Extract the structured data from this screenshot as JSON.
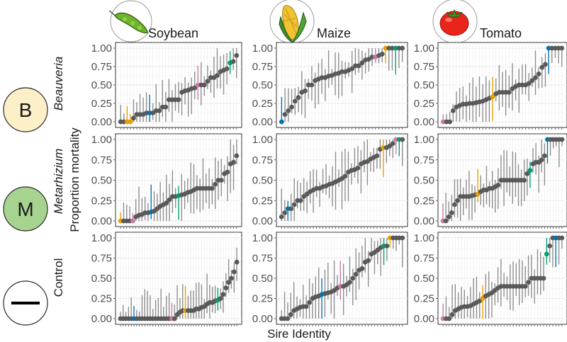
{
  "colors": {
    "panel_bg": "#ffffff",
    "grid": "#ebebeb",
    "point": "#595959",
    "errorbar": "#8c8c8c",
    "highlight": [
      "#e69f00",
      "#0072b2",
      "#cc79a7",
      "#009e73"
    ],
    "badge_B": "#fdf0c8",
    "badge_M": "#a6d38f",
    "badge_control": "#ffffff"
  },
  "icons": [
    "soybean-pod-icon",
    "corn-cob-icon",
    "tomato-icon"
  ],
  "badges": {
    "beauveria": "B",
    "metarhizium": "M"
  },
  "chart_data": {
    "type": "scatter",
    "columns": [
      "Soybean",
      "Maize",
      "Tomato"
    ],
    "rows": [
      "Beauveria",
      "Metarhizium",
      "Control"
    ],
    "xlabel": "Sire Identity",
    "ylabel": "Proportion mortality",
    "ylim": [
      0,
      1
    ],
    "yticks": [
      "0.00",
      "0.25",
      "0.50",
      "0.75",
      "1.00"
    ],
    "grid": true,
    "panels": [
      {
        "crop": "Soybean",
        "treatment": "Beauveria",
        "y": [
          0,
          0,
          0,
          0,
          0.05,
          0.1,
          0.1,
          0.1,
          0.12,
          0.12,
          0.12,
          0.15,
          0.15,
          0.2,
          0.2,
          0.3,
          0.3,
          0.3,
          0.3,
          0.4,
          0.42,
          0.43,
          0.45,
          0.46,
          0.5,
          0.5,
          0.5,
          0.55,
          0.6,
          0.6,
          0.63,
          0.68,
          0.7,
          0.72,
          0.8,
          0.82,
          0.9
        ],
        "highlights": {
          "2": 0,
          "3": 0,
          "9": 1,
          "24": 2,
          "34": 3
        }
      },
      {
        "crop": "Maize",
        "treatment": "Beauveria",
        "y": [
          0,
          0.1,
          0.15,
          0.2,
          0.28,
          0.33,
          0.4,
          0.42,
          0.5,
          0.5,
          0.56,
          0.58,
          0.6,
          0.6,
          0.62,
          0.63,
          0.65,
          0.66,
          0.68,
          0.68,
          0.7,
          0.72,
          0.76,
          0.76,
          0.8,
          0.84,
          0.85,
          0.88,
          0.88,
          0.9,
          0.92,
          1,
          1,
          1,
          1,
          1,
          1
        ],
        "highlights": {
          "0": 1,
          "28": 2,
          "31": 0,
          "34": 3
        }
      },
      {
        "crop": "Tomato",
        "treatment": "Beauveria",
        "y": [
          0,
          0,
          0,
          0.15,
          0.2,
          0.22,
          0.24,
          0.24,
          0.25,
          0.25,
          0.26,
          0.27,
          0.28,
          0.3,
          0.32,
          0.34,
          0.38,
          0.4,
          0.4,
          0.4,
          0.4,
          0.45,
          0.48,
          0.5,
          0.5,
          0.5,
          0.52,
          0.56,
          0.6,
          0.65,
          0.74,
          0.78,
          1,
          1,
          1,
          1,
          1
        ],
        "highlights": {
          "0": 2,
          "15": 0,
          "32": 1
        }
      },
      {
        "crop": "Soybean",
        "treatment": "Metarhizium",
        "y": [
          0,
          0,
          0,
          0,
          0,
          0.05,
          0.07,
          0.08,
          0.1,
          0.1,
          0.11,
          0.12,
          0.15,
          0.18,
          0.2,
          0.22,
          0.26,
          0.3,
          0.3,
          0.31,
          0.32,
          0.33,
          0.35,
          0.36,
          0.38,
          0.4,
          0.4,
          0.4,
          0.4,
          0.4,
          0.4,
          0.45,
          0.5,
          0.5,
          0.58,
          0.6,
          0.7,
          0.72,
          0.8
        ],
        "highlights": {
          "0": 0,
          "4": 2,
          "10": 1,
          "19": 3
        }
      },
      {
        "crop": "Maize",
        "treatment": "Metarhizium",
        "y": [
          0.05,
          0.1,
          0.15,
          0.15,
          0.2,
          0.25,
          0.25,
          0.3,
          0.33,
          0.36,
          0.38,
          0.4,
          0.4,
          0.42,
          0.43,
          0.45,
          0.46,
          0.48,
          0.5,
          0.52,
          0.55,
          0.6,
          0.62,
          0.63,
          0.65,
          0.7,
          0.72,
          0.73,
          0.76,
          0.78,
          0.8,
          0.88,
          0.9,
          0.9,
          0.92,
          0.95,
          1,
          1,
          1
        ],
        "highlights": {
          "2": 1,
          "32": 0,
          "36": 2,
          "37": 3
        }
      },
      {
        "crop": "Tomato",
        "treatment": "Metarhizium",
        "y": [
          0,
          0,
          0.05,
          0.1,
          0.2,
          0.25,
          0.3,
          0.3,
          0.3,
          0.3,
          0.31,
          0.32,
          0.33,
          0.36,
          0.38,
          0.38,
          0.4,
          0.4,
          0.42,
          0.44,
          0.5,
          0.5,
          0.5,
          0.5,
          0.5,
          0.5,
          0.5,
          0.5,
          0.5,
          0.58,
          0.62,
          0.7,
          0.72,
          0.72,
          0.75,
          0.8,
          1,
          1,
          1,
          1,
          1,
          1
        ],
        "highlights": {
          "0": 2,
          "12": 0,
          "30": 3,
          "36": 1
        }
      },
      {
        "crop": "Soybean",
        "treatment": "Control",
        "y": [
          0,
          0,
          0,
          0,
          0,
          0,
          0,
          0,
          0,
          0,
          0,
          0,
          0,
          0,
          0,
          0,
          0,
          0,
          0,
          0,
          0,
          0.05,
          0.08,
          0.1,
          0.1,
          0.1,
          0.1,
          0.1,
          0.12,
          0.12,
          0.14,
          0.15,
          0.18,
          0.2,
          0.2,
          0.22,
          0.23,
          0.25,
          0.3,
          0.38,
          0.45,
          0.5,
          0.58,
          0.7
        ],
        "highlights": {
          "5": 1,
          "19": 2,
          "24": 0,
          "36": 3
        }
      },
      {
        "crop": "Maize",
        "treatment": "Control",
        "y": [
          0,
          0,
          0,
          0.05,
          0.1,
          0.12,
          0.14,
          0.15,
          0.15,
          0.2,
          0.25,
          0.27,
          0.28,
          0.3,
          0.31,
          0.32,
          0.33,
          0.35,
          0.38,
          0.4,
          0.4,
          0.42,
          0.45,
          0.5,
          0.55,
          0.6,
          0.62,
          0.7,
          0.72,
          0.8,
          0.82,
          0.85,
          0.88,
          0.9,
          0.9,
          1,
          1,
          1,
          1,
          1
        ],
        "highlights": {
          "13": 1,
          "19": 2,
          "33": 3,
          "35": 0
        }
      },
      {
        "crop": "Tomato",
        "treatment": "Control",
        "y": [
          0,
          0,
          0,
          0.05,
          0.1,
          0.12,
          0.14,
          0.15,
          0.15,
          0.16,
          0.18,
          0.2,
          0.22,
          0.25,
          0.28,
          0.3,
          0.32,
          0.35,
          0.38,
          0.4,
          0.4,
          0.4,
          0.4,
          0.4,
          0.4,
          0.4,
          0.4,
          0.4,
          0.45,
          0.5,
          0.5,
          0.5,
          0.5,
          0.5,
          0.8,
          0.9,
          1,
          1,
          1,
          1
        ],
        "highlights": {
          "0": 2,
          "13": 0,
          "34": 3,
          "37": 1
        }
      }
    ]
  }
}
